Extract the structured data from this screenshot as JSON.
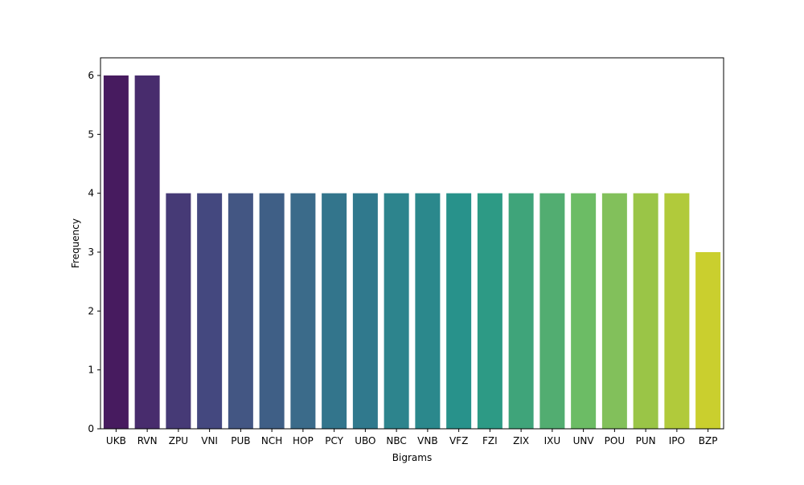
{
  "chart_data": {
    "type": "bar",
    "title": "",
    "xlabel": "Bigrams",
    "ylabel": "Frequency",
    "ylim": [
      0,
      6.3
    ],
    "yticks": [
      0,
      1,
      2,
      3,
      4,
      5,
      6
    ],
    "grid": false,
    "legend": "none",
    "categories": [
      "UKB",
      "RVN",
      "ZPU",
      "VNI",
      "PUB",
      "NCH",
      "HOP",
      "PCY",
      "UBO",
      "NBC",
      "VNB",
      "VFZ",
      "FZI",
      "ZIX",
      "IXU",
      "UNV",
      "POU",
      "PUN",
      "IPO",
      "BZP"
    ],
    "values": [
      6,
      6,
      4,
      4,
      4,
      4,
      4,
      4,
      4,
      4,
      4,
      4,
      4,
      4,
      4,
      4,
      4,
      4,
      4,
      3
    ],
    "colors": [
      "#471b5f",
      "#482c6d",
      "#463a76",
      "#44487f",
      "#435683",
      "#3f5f86",
      "#3b6b8a",
      "#33758c",
      "#30798d",
      "#2d848d",
      "#2b888c",
      "#28928b",
      "#2d9a85",
      "#3fa47a",
      "#52ad71",
      "#6cbc65",
      "#82c05b",
      "#9ac547",
      "#b1ca3b",
      "#cacf2e"
    ]
  }
}
